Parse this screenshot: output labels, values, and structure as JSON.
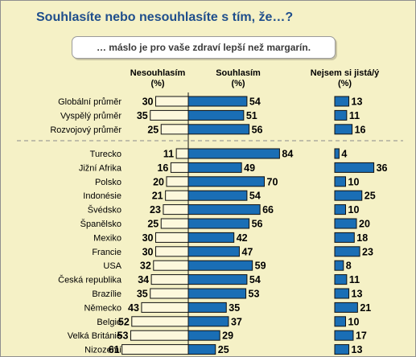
{
  "title": "Souhlasíte nebo nesouhlasíte s tím, že…?",
  "subtitle": "… máslo je pro vaše zdraví lepší než margarín.",
  "columns": {
    "disagree": "Nesouhlasím",
    "agree": "Souhlasím",
    "unsure": "Nejsem si jistá/ý",
    "unit": "(%)"
  },
  "colors": {
    "agree": "#1a6eb5",
    "unsure": "#1a6eb5",
    "disagree": "#fdf8dc",
    "outline": "#111111",
    "background": "#f5f1c6",
    "title": "#1f4e8c"
  },
  "chart_data": {
    "type": "bar",
    "groups": [
      {
        "name": "summary",
        "categories": [
          "Globální průměr",
          "Vyspělý průměr",
          "Rozvojový průměr"
        ],
        "series": [
          {
            "name": "Nesouhlasím",
            "values": [
              30,
              35,
              25
            ]
          },
          {
            "name": "Souhlasím",
            "values": [
              54,
              51,
              56
            ]
          },
          {
            "name": "Nejsem si jistá/ý",
            "values": [
              13,
              11,
              16
            ]
          }
        ]
      },
      {
        "name": "countries",
        "categories": [
          "Turecko",
          "Jižní Afrika",
          "Polsko",
          "Indonésie",
          "Švédsko",
          "Španělsko",
          "Mexiko",
          "Francie",
          "USA",
          "Česká republika",
          "Brazílie",
          "Německo",
          "Belgie",
          "Velká Británie",
          "Nizozemí"
        ],
        "series": [
          {
            "name": "Nesouhlasím",
            "values": [
              11,
              16,
              20,
              21,
              23,
              25,
              30,
              30,
              32,
              34,
              35,
              43,
              52,
              53,
              61
            ]
          },
          {
            "name": "Souhlasím",
            "values": [
              84,
              49,
              70,
              54,
              66,
              56,
              42,
              47,
              59,
              54,
              53,
              35,
              37,
              29,
              25
            ]
          },
          {
            "name": "Nejsem si jistá/ý",
            "values": [
              4,
              36,
              10,
              25,
              10,
              20,
              18,
              23,
              8,
              11,
              13,
              21,
              10,
              17,
              13
            ]
          }
        ]
      }
    ]
  }
}
